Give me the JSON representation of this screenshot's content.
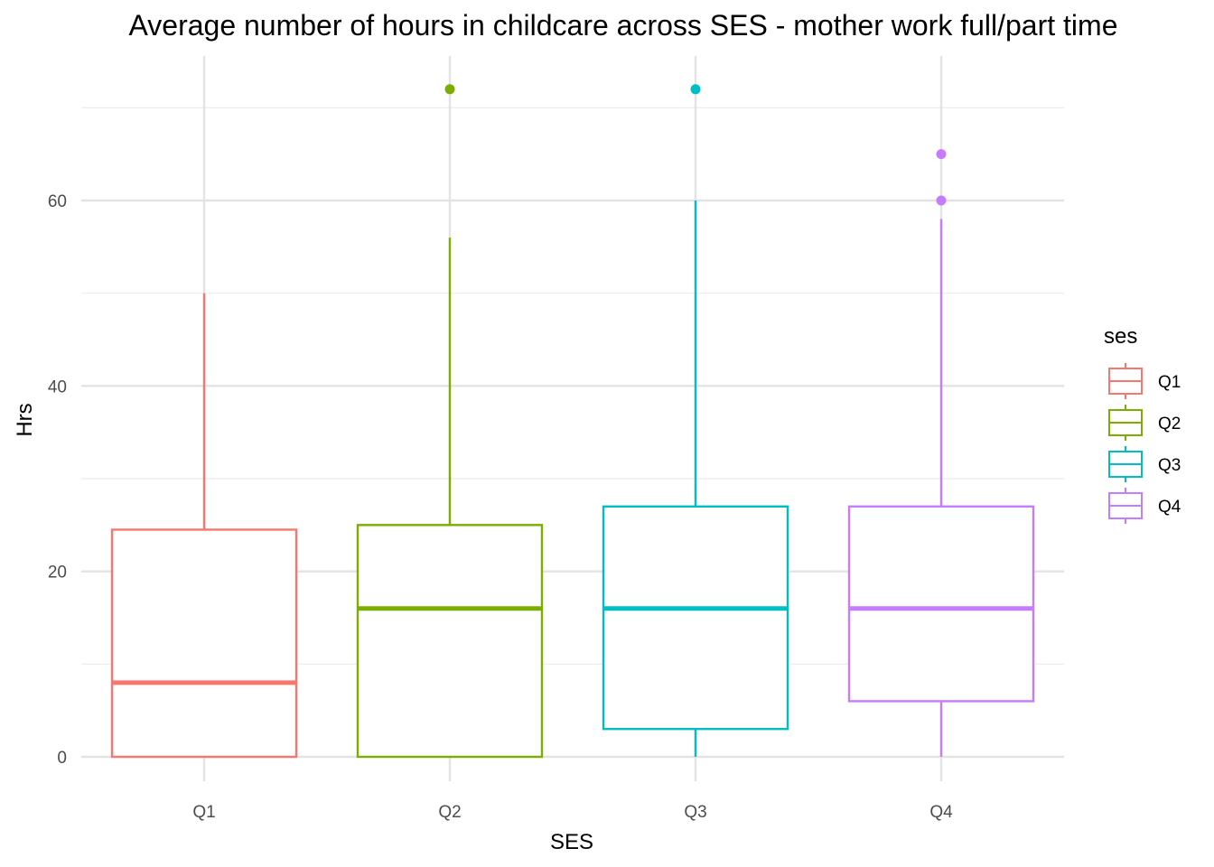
{
  "chart_data": {
    "type": "boxplot",
    "title": "Average number of hours in childcare across SES - mother work full/part time",
    "xlabel": "SES",
    "ylabel": "Hrs",
    "categories": [
      "Q1",
      "Q2",
      "Q3",
      "Q4"
    ],
    "y_ticks": [
      0,
      20,
      40,
      60
    ],
    "ylim": [
      -2.5,
      75
    ],
    "grid": true,
    "legend": {
      "title": "ses",
      "placement": "right",
      "entries": [
        "Q1",
        "Q2",
        "Q3",
        "Q4"
      ]
    },
    "colors": [
      "#F8766D",
      "#7CAE00",
      "#00BFC4",
      "#C77CFF"
    ],
    "series": [
      {
        "category": "Q1",
        "whisker_low": 0,
        "q1": 0,
        "median": 8,
        "q3": 24.5,
        "whisker_high": 50,
        "outliers": []
      },
      {
        "category": "Q2",
        "whisker_low": 0,
        "q1": 0,
        "median": 16,
        "q3": 25,
        "whisker_high": 56,
        "outliers": [
          72
        ]
      },
      {
        "category": "Q3",
        "whisker_low": 0,
        "q1": 3,
        "median": 16,
        "q3": 27,
        "whisker_high": 60,
        "outliers": [
          72
        ]
      },
      {
        "category": "Q4",
        "whisker_low": 0,
        "q1": 6,
        "median": 16,
        "q3": 27,
        "whisker_high": 58,
        "outliers": [
          60,
          65
        ]
      }
    ]
  }
}
